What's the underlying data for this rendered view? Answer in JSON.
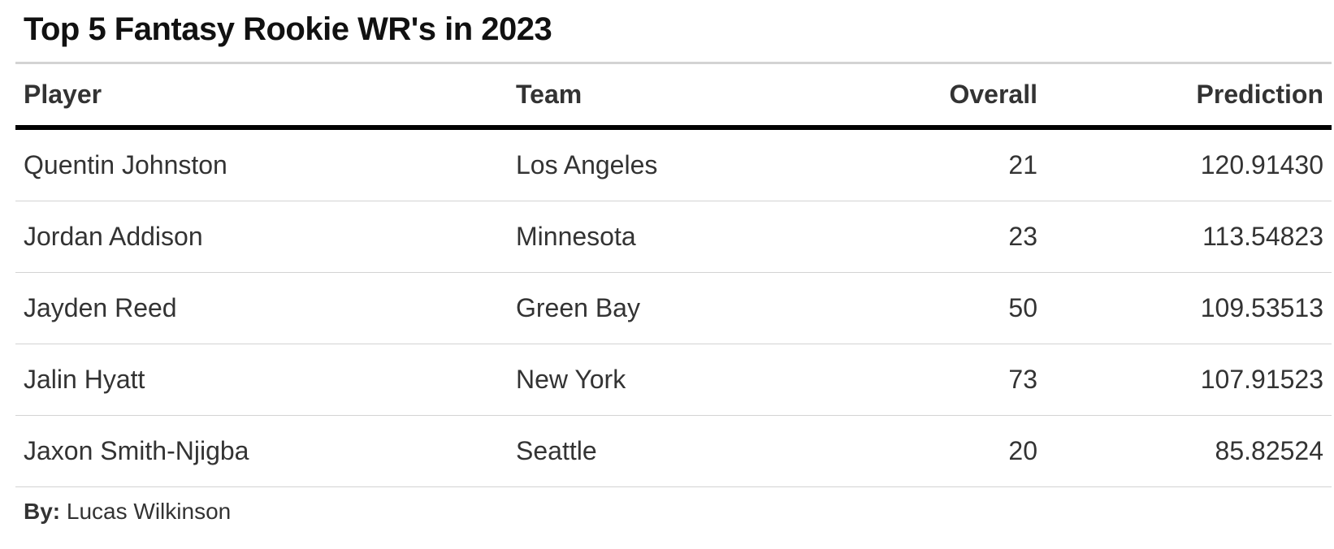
{
  "chart_data": {
    "type": "table",
    "title": "Top 5 Fantasy Rookie WR's in 2023",
    "columns": [
      "Player",
      "Team",
      "Overall",
      "Prediction"
    ],
    "rows": [
      {
        "player": "Quentin Johnston",
        "team": "Los Angeles",
        "overall": "21",
        "prediction": "120.91430"
      },
      {
        "player": "Jordan Addison",
        "team": "Minnesota",
        "overall": "23",
        "prediction": "113.54823"
      },
      {
        "player": "Jayden Reed",
        "team": "Green Bay",
        "overall": "50",
        "prediction": "109.53513"
      },
      {
        "player": "Jalin Hyatt",
        "team": "New York",
        "overall": "73",
        "prediction": "107.91523"
      },
      {
        "player": "Jaxon Smith-Njigba",
        "team": "Seattle",
        "overall": "20",
        "prediction": "85.82524"
      }
    ],
    "source_label": "By:",
    "source_text": "Lucas Wilkinson"
  }
}
